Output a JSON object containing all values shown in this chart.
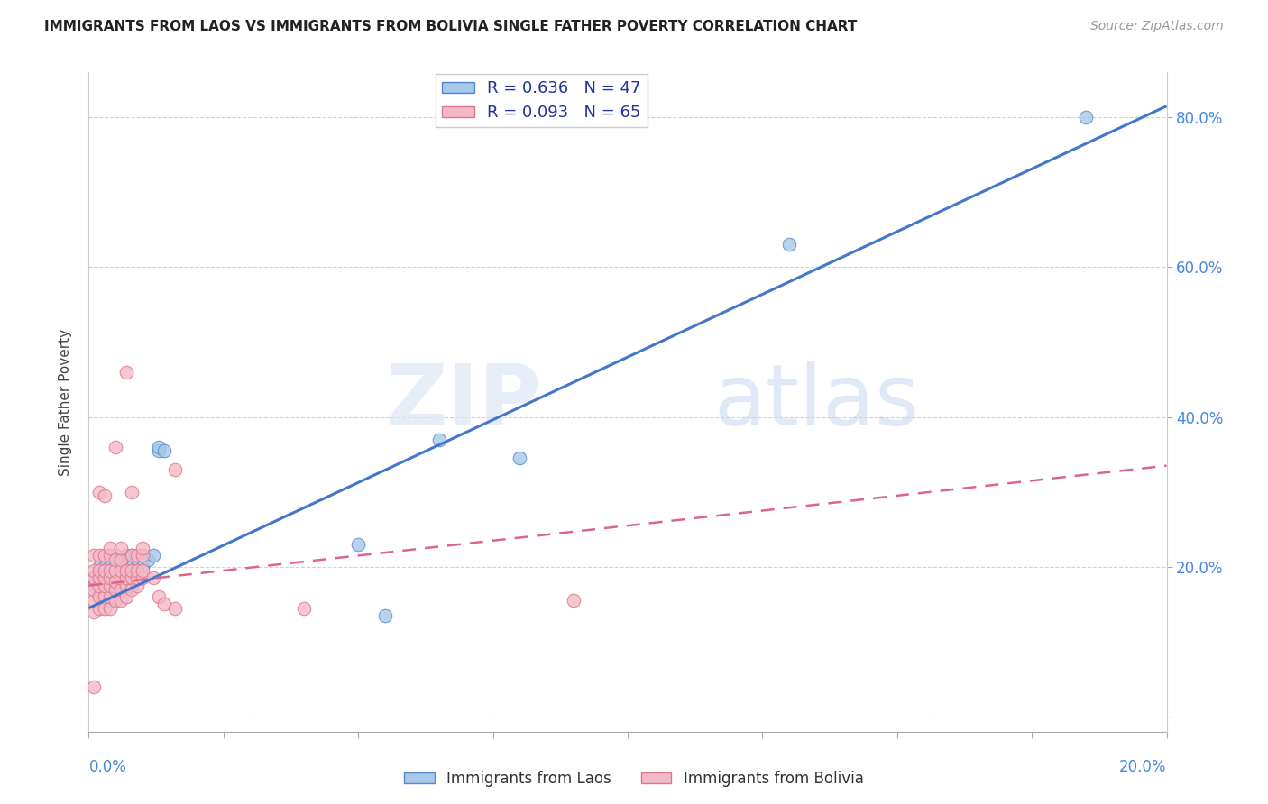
{
  "title": "IMMIGRANTS FROM LAOS VS IMMIGRANTS FROM BOLIVIA SINGLE FATHER POVERTY CORRELATION CHART",
  "source": "Source: ZipAtlas.com",
  "ylabel": "Single Father Poverty",
  "xlim": [
    0.0,
    0.2
  ],
  "ylim": [
    -0.02,
    0.86
  ],
  "laos_color": "#a8c8e8",
  "laos_color_dark": "#5588cc",
  "bolivia_color": "#f4b8c8",
  "bolivia_color_dark": "#dd7788",
  "laos_R": 0.636,
  "laos_N": 47,
  "bolivia_R": 0.093,
  "bolivia_N": 65,
  "laos_line_color": "#4477cc",
  "bolivia_line_color": "#dd6688",
  "laos_line_x0": 0.0,
  "laos_line_y0": 0.145,
  "laos_line_x1": 0.2,
  "laos_line_y1": 0.815,
  "bolivia_line_x0": 0.0,
  "bolivia_line_y0": 0.175,
  "bolivia_line_x1": 0.2,
  "bolivia_line_y1": 0.335,
  "watermark_zip": "ZIP",
  "watermark_atlas": "atlas",
  "laos_scatter_x": [
    0.001,
    0.001,
    0.002,
    0.002,
    0.002,
    0.003,
    0.003,
    0.003,
    0.003,
    0.003,
    0.003,
    0.004,
    0.004,
    0.004,
    0.004,
    0.004,
    0.005,
    0.005,
    0.005,
    0.005,
    0.005,
    0.005,
    0.006,
    0.006,
    0.006,
    0.006,
    0.007,
    0.007,
    0.007,
    0.008,
    0.008,
    0.008,
    0.009,
    0.009,
    0.01,
    0.01,
    0.011,
    0.012,
    0.013,
    0.013,
    0.014,
    0.05,
    0.055,
    0.065,
    0.08,
    0.13,
    0.185
  ],
  "laos_scatter_y": [
    0.185,
    0.175,
    0.175,
    0.19,
    0.2,
    0.17,
    0.18,
    0.185,
    0.195,
    0.2,
    0.16,
    0.175,
    0.185,
    0.19,
    0.2,
    0.155,
    0.17,
    0.175,
    0.18,
    0.19,
    0.2,
    0.215,
    0.175,
    0.185,
    0.195,
    0.205,
    0.185,
    0.195,
    0.215,
    0.19,
    0.2,
    0.215,
    0.195,
    0.21,
    0.2,
    0.215,
    0.21,
    0.215,
    0.355,
    0.36,
    0.355,
    0.23,
    0.135,
    0.37,
    0.345,
    0.63,
    0.8
  ],
  "bolivia_scatter_x": [
    0.001,
    0.001,
    0.001,
    0.001,
    0.001,
    0.001,
    0.001,
    0.002,
    0.002,
    0.002,
    0.002,
    0.002,
    0.002,
    0.002,
    0.003,
    0.003,
    0.003,
    0.003,
    0.003,
    0.003,
    0.003,
    0.004,
    0.004,
    0.004,
    0.004,
    0.004,
    0.004,
    0.004,
    0.005,
    0.005,
    0.005,
    0.005,
    0.005,
    0.005,
    0.006,
    0.006,
    0.006,
    0.006,
    0.006,
    0.006,
    0.007,
    0.007,
    0.007,
    0.007,
    0.007,
    0.008,
    0.008,
    0.008,
    0.008,
    0.008,
    0.009,
    0.009,
    0.009,
    0.009,
    0.01,
    0.01,
    0.01,
    0.01,
    0.012,
    0.013,
    0.014,
    0.016,
    0.016,
    0.04,
    0.09
  ],
  "bolivia_scatter_y": [
    0.04,
    0.14,
    0.155,
    0.17,
    0.185,
    0.195,
    0.215,
    0.145,
    0.16,
    0.175,
    0.185,
    0.195,
    0.215,
    0.3,
    0.145,
    0.16,
    0.175,
    0.185,
    0.195,
    0.215,
    0.295,
    0.145,
    0.16,
    0.175,
    0.185,
    0.195,
    0.215,
    0.225,
    0.155,
    0.17,
    0.18,
    0.195,
    0.21,
    0.36,
    0.155,
    0.17,
    0.185,
    0.195,
    0.21,
    0.225,
    0.16,
    0.175,
    0.185,
    0.195,
    0.46,
    0.17,
    0.185,
    0.195,
    0.215,
    0.3,
    0.175,
    0.185,
    0.195,
    0.215,
    0.185,
    0.195,
    0.215,
    0.225,
    0.185,
    0.16,
    0.15,
    0.145,
    0.33,
    0.145,
    0.155
  ]
}
